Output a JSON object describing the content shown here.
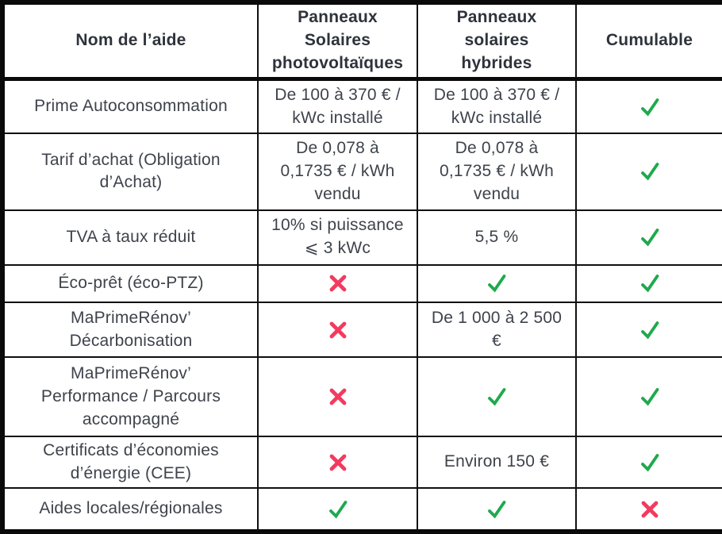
{
  "colors": {
    "border": "#0a0a0a",
    "text": "#3e434b",
    "header_text": "#2e333b",
    "check_green": "#1fa94d",
    "cross_pink": "#f33a5f"
  },
  "table": {
    "headers": [
      {
        "id": "aide",
        "lines": [
          "Nom de l’aide"
        ]
      },
      {
        "id": "pv",
        "lines": [
          "Panneaux",
          "Solaires",
          "photovoltaïques"
        ]
      },
      {
        "id": "hybride",
        "lines": [
          "Panneaux",
          "solaires",
          "hybrides"
        ]
      },
      {
        "id": "cumulable",
        "lines": [
          "Cumulable"
        ]
      }
    ],
    "rows": [
      {
        "aide": {
          "type": "text",
          "lines": [
            "Prime Autoconsommation"
          ]
        },
        "pv": {
          "type": "text",
          "lines": [
            "De 100 à 370 € /",
            "kWc installé"
          ]
        },
        "hybride": {
          "type": "text",
          "lines": [
            "De 100 à 370 € /",
            "kWc installé"
          ]
        },
        "cumulable": {
          "type": "check"
        }
      },
      {
        "aide": {
          "type": "text",
          "lines": [
            "Tarif d’achat (Obligation",
            "d’Achat)"
          ]
        },
        "pv": {
          "type": "text",
          "lines": [
            "De 0,078 à",
            "0,1735 € / kWh",
            "vendu"
          ]
        },
        "hybride": {
          "type": "text",
          "lines": [
            "De 0,078 à",
            "0,1735 € / kWh",
            "vendu"
          ]
        },
        "cumulable": {
          "type": "check"
        }
      },
      {
        "aide": {
          "type": "text",
          "lines": [
            "TVA à taux réduit"
          ]
        },
        "pv": {
          "type": "text",
          "lines": [
            "10% si puissance",
            "⩽ 3 kWc"
          ]
        },
        "hybride": {
          "type": "text",
          "lines": [
            "5,5 %"
          ]
        },
        "cumulable": {
          "type": "check"
        }
      },
      {
        "aide": {
          "type": "text",
          "lines": [
            "Éco-prêt (éco-PTZ)"
          ]
        },
        "pv": {
          "type": "cross"
        },
        "hybride": {
          "type": "check"
        },
        "cumulable": {
          "type": "check"
        }
      },
      {
        "aide": {
          "type": "text",
          "lines": [
            "MaPrimeRénov’",
            "Décarbonisation"
          ]
        },
        "pv": {
          "type": "cross"
        },
        "hybride": {
          "type": "text",
          "lines": [
            "De 1 000 à 2 500",
            "€"
          ]
        },
        "cumulable": {
          "type": "check"
        }
      },
      {
        "aide": {
          "type": "text",
          "lines": [
            "MaPrimeRénov’",
            "Performance / Parcours",
            "accompagné"
          ]
        },
        "pv": {
          "type": "cross"
        },
        "hybride": {
          "type": "check"
        },
        "cumulable": {
          "type": "check"
        }
      },
      {
        "aide": {
          "type": "text",
          "lines": [
            "Certificats d’économies",
            "d’énergie (CEE)"
          ]
        },
        "pv": {
          "type": "cross"
        },
        "hybride": {
          "type": "text",
          "lines": [
            "Environ 150 €"
          ]
        },
        "cumulable": {
          "type": "check"
        }
      },
      {
        "aide": {
          "type": "text",
          "lines": [
            "Aides locales/régionales"
          ]
        },
        "pv": {
          "type": "check"
        },
        "hybride": {
          "type": "check"
        },
        "cumulable": {
          "type": "cross"
        }
      }
    ]
  }
}
